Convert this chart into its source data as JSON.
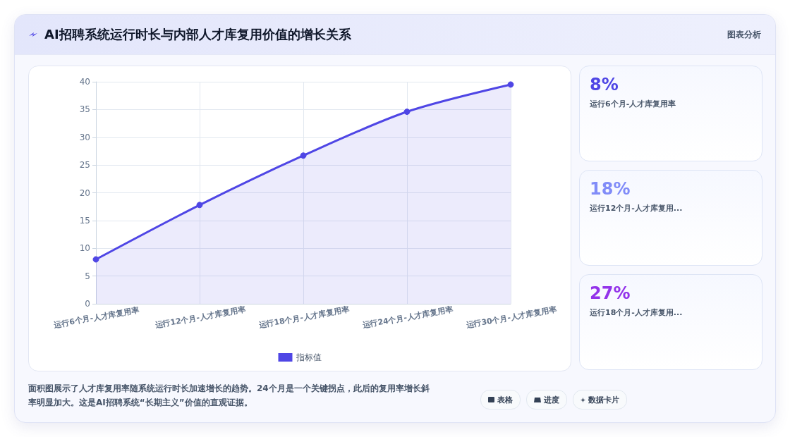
{
  "chart_data": [
    {
      "type": "area",
      "title": "AI招聘系统运行时长与内部人才库复用价值的增长关系",
      "categories": [
        "运行6个月-人才库复用率",
        "运行12个月-人才库复用率",
        "运行18个月-人才库复用率",
        "运行24个月-人才库复用率",
        "运行30个月-人才库复用率"
      ],
      "series": [
        {
          "name": "指标值",
          "color": "#4f46e5",
          "values": [
            8,
            17.8,
            26.7,
            34.6,
            39.5
          ]
        }
      ],
      "ylim": [
        0,
        40
      ],
      "yticks": [
        0,
        5,
        10,
        15,
        20,
        25,
        30,
        35,
        40
      ],
      "grid": true,
      "legend": "bottom",
      "marker": "circle",
      "line_style": "solid",
      "annotations": [
        "图表分析",
        "面积图展示了人才库复用率随系统运行时长加速增长的趋势。24个月是一个关键拐点，此后的复用率增长斜率明显加大。这是AI招聘系统“长期主义”价值的直观证据。",
        "表格",
        "进度",
        "数据卡片"
      ]
    },
    {
      "type": "other",
      "colors": [
        "#4f46e5",
        "#818cf8",
        "#9333ea"
      ],
      "annotations": [
        "8%",
        "运行6个月-人才库复用率",
        "18%",
        "运行12个月-人才库复用...",
        "27%",
        "运行18个月-人才库复用..."
      ]
    }
  ]
}
